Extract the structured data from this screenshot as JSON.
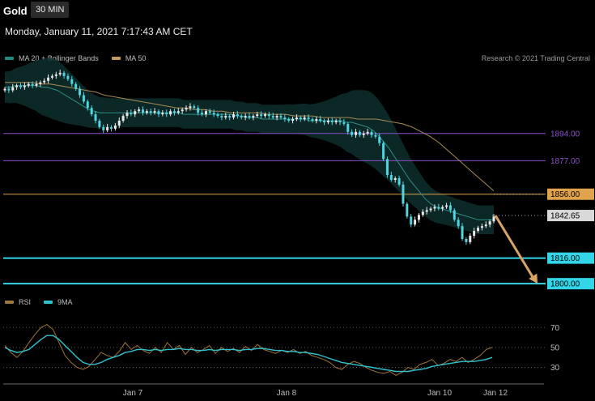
{
  "header": {
    "symbol": "Gold",
    "timeframe": "30 MIN",
    "datetime": "Monday, January 11, 2021 7:17:43 AM CET",
    "credit": "Research © 2021 Trading Central"
  },
  "colors": {
    "background": "#000000",
    "candle_up": "#e8e8e8",
    "candle_down": "#4fd4e0",
    "ma20": "#1f6f6b",
    "bollinger_fill": "#0d2e2d",
    "ma50": "#a88a55",
    "purple_level": "#8b4fc9",
    "orange_level": "#e0a24a",
    "cyan_level": "#33d6e8",
    "current_level": "#cfcfcf",
    "arrow": "#d9a463",
    "rsi": "#a0763a",
    "rsi_ma": "#2ec4cf"
  },
  "chart_data": [
    {
      "type": "line",
      "title": "Gold",
      "subtitle": "30 MIN",
      "x_tick_labels": [
        "Jan 7",
        "Jan 8",
        "Jan 10",
        "Jan 12"
      ],
      "y_range": [
        1794,
        1937
      ],
      "series": [
        {
          "name": "Price",
          "kind": "candlestick",
          "values": [
            1922,
            1921,
            1923,
            1924,
            1923,
            1924,
            1925,
            1924,
            1925,
            1926,
            1927,
            1929,
            1930,
            1931,
            1932,
            1930,
            1928,
            1925,
            1922,
            1918,
            1914,
            1910,
            1906,
            1902,
            1898,
            1896,
            1898,
            1897,
            1899,
            1902,
            1905,
            1907,
            1906,
            1908,
            1909,
            1907,
            1908,
            1907,
            1908,
            1906,
            1907,
            1906,
            1908,
            1907,
            1908,
            1909,
            1910,
            1911,
            1910,
            1907,
            1906,
            1908,
            1907,
            1906,
            1905,
            1904,
            1905,
            1904,
            1906,
            1905,
            1904,
            1905,
            1904,
            1905,
            1906,
            1905,
            1906,
            1905,
            1904,
            1905,
            1904,
            1903,
            1902,
            1903,
            1904,
            1903,
            1904,
            1903,
            1902,
            1903,
            1902,
            1901,
            1902,
            1901,
            1902,
            1901,
            1900,
            1895,
            1893,
            1895,
            1893,
            1894,
            1895,
            1893,
            1892,
            1888,
            1878,
            1868,
            1865,
            1866,
            1862,
            1850,
            1842,
            1837,
            1840,
            1843,
            1845,
            1846,
            1847,
            1848,
            1847,
            1848,
            1849,
            1846,
            1840,
            1836,
            1828,
            1826,
            1830,
            1833,
            1835,
            1836,
            1837,
            1839,
            1842
          ]
        },
        {
          "name": "MA 20 + Bollinger Bands",
          "values": [
            1923,
            1923,
            1924,
            1924,
            1924,
            1924,
            1924,
            1923,
            1923,
            1922,
            1921,
            1919,
            1917,
            1915,
            1913,
            1911,
            1909,
            1908,
            1907,
            1907,
            1907,
            1907,
            1907,
            1907,
            1907,
            1907,
            1907,
            1907,
            1907,
            1907,
            1907,
            1907,
            1907,
            1907,
            1906,
            1906,
            1906,
            1906,
            1906,
            1906,
            1906,
            1906,
            1906,
            1906,
            1905,
            1905,
            1904,
            1904,
            1904,
            1903,
            1903,
            1903,
            1903,
            1903,
            1903,
            1903,
            1903,
            1903,
            1902,
            1902,
            1902,
            1902,
            1902,
            1902,
            1902,
            1901,
            1901,
            1900,
            1899,
            1898,
            1896,
            1893,
            1889,
            1885,
            1880,
            1875,
            1870,
            1865,
            1861,
            1857,
            1853,
            1850,
            1848,
            1847,
            1846,
            1845,
            1844,
            1843,
            1842,
            1841,
            1840,
            1840,
            1840,
            1840
          ]
        },
        {
          "name": "MA 50",
          "values": [
            1926,
            1926,
            1926,
            1926,
            1925,
            1925,
            1924,
            1923,
            1922,
            1921,
            1920,
            1918,
            1917,
            1916,
            1915,
            1914,
            1913,
            1912,
            1911,
            1910,
            1910,
            1909,
            1909,
            1908,
            1908,
            1907,
            1907,
            1907,
            1907,
            1906,
            1906,
            1906,
            1905,
            1905,
            1905,
            1904,
            1904,
            1904,
            1904,
            1903,
            1903,
            1903,
            1902,
            1901,
            1900,
            1898,
            1895,
            1892,
            1888,
            1883,
            1878,
            1873,
            1868,
            1863,
            1858
          ]
        }
      ],
      "levels": [
        {
          "label": "1894.00",
          "value": 1894,
          "style": "purple"
        },
        {
          "label": "1877.00",
          "value": 1877,
          "style": "purple"
        },
        {
          "label": "1856.00",
          "value": 1856,
          "style": "orange"
        },
        {
          "label": "1842.65",
          "value": 1842.65,
          "style": "current"
        },
        {
          "label": "1816.00",
          "value": 1816,
          "style": "cyan"
        },
        {
          "label": "1800.00",
          "value": 1800,
          "style": "cyan"
        }
      ],
      "projection_arrow": {
        "from": 1842.65,
        "to": 1800
      }
    },
    {
      "type": "line",
      "title": "",
      "y_ticks": [
        70,
        50,
        30
      ],
      "y_range": [
        15,
        80
      ],
      "x_tick_labels": [
        "Jan 7",
        "Jan 8",
        "Jan 10",
        "Jan 12"
      ],
      "series": [
        {
          "name": "RSI",
          "values": [
            52,
            45,
            40,
            46,
            55,
            63,
            70,
            73,
            68,
            55,
            42,
            35,
            30,
            28,
            31,
            38,
            45,
            42,
            40,
            46,
            55,
            48,
            52,
            47,
            44,
            50,
            45,
            55,
            48,
            52,
            43,
            50,
            45,
            48,
            52,
            44,
            50,
            46,
            49,
            45,
            51,
            47,
            53,
            48,
            46,
            44,
            47,
            45,
            48,
            44,
            46,
            42,
            40,
            38,
            35,
            30,
            28,
            33,
            36,
            34,
            30,
            27,
            25,
            24,
            26,
            22,
            25,
            30,
            28,
            33,
            35,
            38,
            32,
            34,
            38,
            36,
            40,
            35,
            38,
            42,
            48,
            50
          ]
        },
        {
          "name": "9MA",
          "values": [
            50,
            47,
            45,
            46,
            48,
            53,
            58,
            62,
            62,
            58,
            52,
            46,
            40,
            35,
            33,
            33,
            35,
            38,
            40,
            42,
            45,
            46,
            48,
            48,
            47,
            48,
            47,
            48,
            48,
            49,
            48,
            48,
            47,
            47,
            48,
            47,
            48,
            48,
            48,
            47,
            48,
            48,
            49,
            49,
            48,
            47,
            47,
            46,
            46,
            45,
            45,
            44,
            43,
            41,
            39,
            37,
            35,
            34,
            33,
            32,
            31,
            30,
            29,
            28,
            27,
            26,
            26,
            26,
            27,
            28,
            29,
            31,
            32,
            33,
            34,
            35,
            36,
            36,
            36,
            37,
            38,
            40
          ]
        }
      ]
    }
  ],
  "legends": {
    "price": [
      {
        "label": "MA 20 + Bollinger Bands",
        "color": "#1f6f6b"
      },
      {
        "label": "MA 50",
        "color": "#a88a55"
      }
    ],
    "rsi": [
      {
        "label": "RSI",
        "color": "#a0763a"
      },
      {
        "label": "9MA",
        "color": "#2ec4cf"
      }
    ]
  }
}
